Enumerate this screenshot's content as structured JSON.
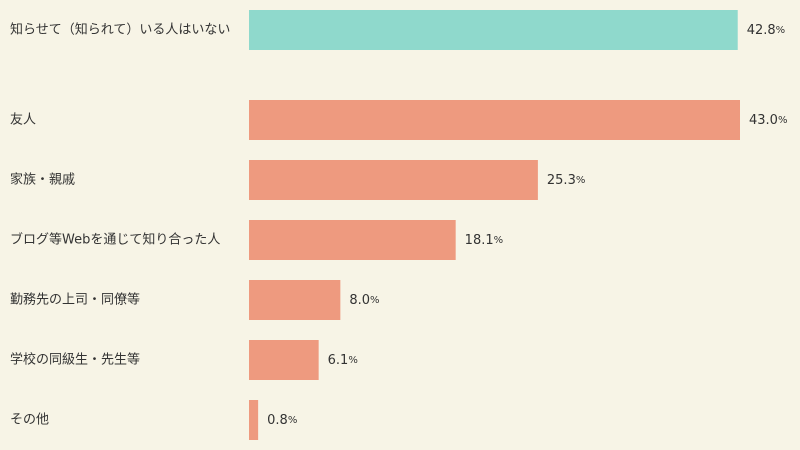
{
  "colors": {
    "background": "#f7f4e6",
    "highlight_bar": "#8fd9cc",
    "bar": "#ee9a7f",
    "text": "#333333"
  },
  "chart_data": {
    "type": "bar",
    "orientation": "horizontal",
    "categories": [
      "知らせて（知られて）いる人はいない",
      "友人",
      "家族・親戚",
      "ブログ等Webを通じて知り合った人",
      "勤務先の上司・同僚等",
      "学校の同級生・先生等",
      "その他"
    ],
    "values": [
      42.8,
      43.0,
      25.3,
      18.1,
      8.0,
      6.1,
      0.8
    ],
    "value_labels": [
      "42.8",
      "43.0",
      "25.3",
      "18.1",
      "8.0",
      "6.1",
      "0.8"
    ],
    "unit": "%",
    "highlighted_category_index": 0,
    "title": "",
    "xlabel": "",
    "ylabel": "",
    "xlim": [
      0,
      43.0
    ],
    "grid": false,
    "legend": "none"
  }
}
